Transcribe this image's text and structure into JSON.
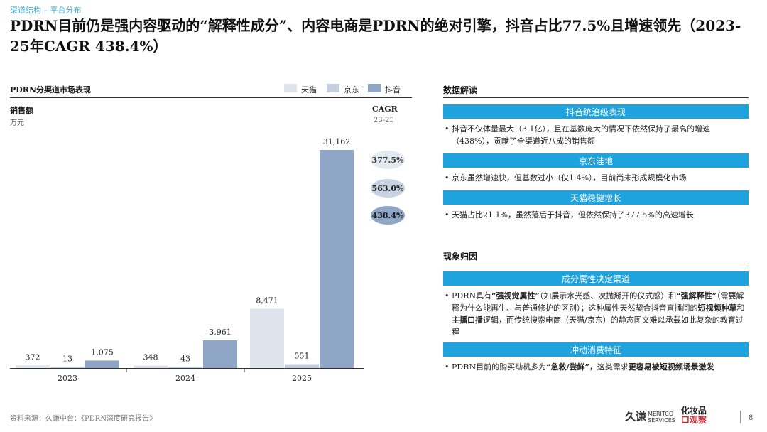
{
  "breadcrumb": "渠道结构 – 平台分布",
  "headline": "PDRN目前仍是强内容驱动的“解释性成分”、内容电商是PDRN的绝对引擎，抖音占比77.5%且增速领先（2023-25年CAGR 438.4%）",
  "colors": {
    "tmall": "#dde4ec",
    "jd": "#c4d0df",
    "douyin": "#8fa6c6",
    "accent": "#1fa3de"
  },
  "chart_data": {
    "type": "bar",
    "title": "PDRN分渠道市场表现",
    "ylabel": "销售额",
    "yunit": "万元",
    "categories": [
      "2023",
      "2024",
      "2025"
    ],
    "series": [
      {
        "name": "天猫",
        "values": [
          372,
          348,
          8471
        ]
      },
      {
        "name": "京东",
        "values": [
          13,
          43,
          551
        ]
      },
      {
        "name": "抖音",
        "values": [
          1075,
          3961,
          31162
        ]
      }
    ],
    "value_labels": [
      [
        "372",
        "348",
        "8,471"
      ],
      [
        "13",
        "43",
        "551"
      ],
      [
        "1,075",
        "3,961",
        "31,162"
      ]
    ],
    "ylim": [
      0,
      31162
    ],
    "cagr_title": "CAGR",
    "cagr_sub": "23-25",
    "cagr": [
      "377.5%",
      "563.0%",
      "438.4%"
    ],
    "grid": false,
    "legend_position": "top-right"
  },
  "right": {
    "section1_title": "数据解读",
    "block1_head": "抖音统治级表现",
    "block1_text": "抖音不仅体量最大（3.1亿），且在基数庞大的情况下依然保持了最高的增速（438%），贡献了全渠道近八成的销售额",
    "block2_head": "京东洼地",
    "block2_text": "京东虽然增速快，但基数过小（仅1.4%），目前尚未形成规模化市场",
    "block3_head": "天猫稳健增长",
    "block3_text": "天猫占比21.1%，虽然落后于抖音，但依然保持了377.5%的高速增长",
    "section2_title": "现象归因",
    "block4_head": "成分属性决定渠道",
    "block4_p1": "PDRN具有",
    "block4_b1": "“强视觉属性”",
    "block4_p2": "（如展示水光感、次抛掰开的仪式感）和",
    "block4_b2": "“强解释性”",
    "block4_p3": "（需要解释为什么能再生、与普通修护的区别）；这种属性天然契合抖音直播间的",
    "block4_b3": "短视频种草",
    "block4_p4": "和",
    "block4_b4": "主播口播",
    "block4_p5": "逻辑，而传统搜索电商（天猫/京东）的静态图文难以承载如此复杂的教育过程",
    "block5_head": "冲动消费特征",
    "block5_p1": "PDRN目前的购买动机多为",
    "block5_b1": "“急救/尝鲜”",
    "block5_p2": "，这类需求",
    "block5_b2": "更容易被短视频场景激发"
  },
  "source": "资料来源：久谦中台：《PDRN深度研究报告》",
  "logo1": "久谦",
  "logo1_sub1": "MERITCO",
  "logo1_sub2": "SERVICES",
  "logo2_top": "化妆品",
  "logo2_bottom": "口观察",
  "page_number": "8"
}
